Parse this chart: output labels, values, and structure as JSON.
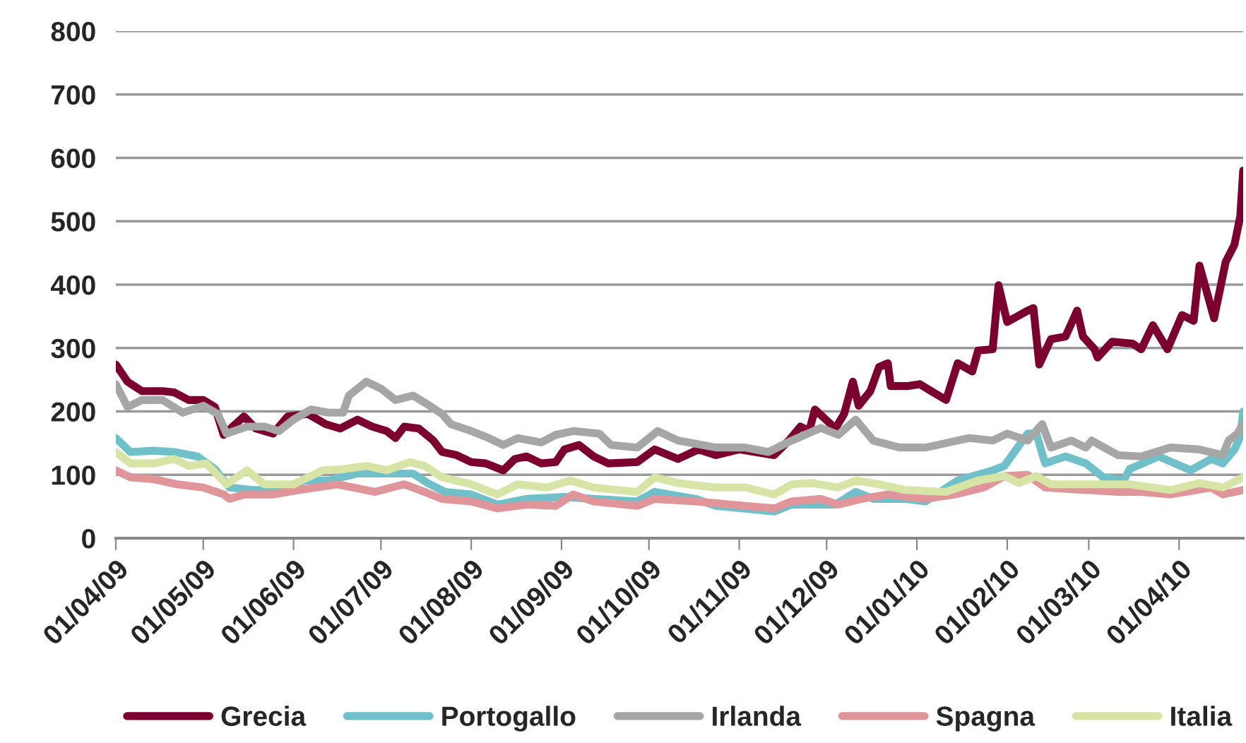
{
  "chart_data": {
    "type": "line",
    "ylim": [
      0,
      800
    ],
    "yticks": [
      0,
      100,
      200,
      300,
      400,
      500,
      600,
      700,
      800
    ],
    "xlim": [
      "2009-04-01",
      "2010-04-23"
    ],
    "xticks": [
      {
        "value": "2009-04-01",
        "label": "01/04/09"
      },
      {
        "value": "2009-05-01",
        "label": "01/05/09"
      },
      {
        "value": "2009-06-01",
        "label": "01/06/09"
      },
      {
        "value": "2009-07-01",
        "label": "01/07/09"
      },
      {
        "value": "2009-08-01",
        "label": "01/08/09"
      },
      {
        "value": "2009-09-01",
        "label": "01/09/09"
      },
      {
        "value": "2009-10-01",
        "label": "01/10/09"
      },
      {
        "value": "2009-11-01",
        "label": "01/11/09"
      },
      {
        "value": "2009-12-01",
        "label": "01/12/09"
      },
      {
        "value": "2010-01-01",
        "label": "01/01/10"
      },
      {
        "value": "2010-02-01",
        "label": "01/02/10"
      },
      {
        "value": "2010-03-01",
        "label": "01/03/10"
      },
      {
        "value": "2010-04-01",
        "label": "01/04/10"
      }
    ],
    "grid": "y",
    "legend": "bottom",
    "marker": "none",
    "line_style": "solid",
    "series": [
      {
        "name": "Grecia",
        "color": "#7b0030",
        "x": [
          "2009-04-01",
          "2009-04-05",
          "2009-04-10",
          "2009-04-17",
          "2009-04-21",
          "2009-04-26",
          "2009-05-01",
          "2009-05-05",
          "2009-05-08",
          "2009-05-15",
          "2009-05-19",
          "2009-05-25",
          "2009-05-30",
          "2009-06-06",
          "2009-06-12",
          "2009-06-17",
          "2009-06-23",
          "2009-06-28",
          "2009-07-03",
          "2009-07-06",
          "2009-07-09",
          "2009-07-14",
          "2009-07-19",
          "2009-07-22",
          "2009-07-27",
          "2009-08-01",
          "2009-08-06",
          "2009-08-12",
          "2009-08-16",
          "2009-08-20",
          "2009-08-25",
          "2009-08-30",
          "2009-09-02",
          "2009-09-07",
          "2009-09-12",
          "2009-09-17",
          "2009-09-27",
          "2009-10-03",
          "2009-10-11",
          "2009-10-18",
          "2009-10-24",
          "2009-11-01",
          "2009-11-09",
          "2009-11-13",
          "2009-11-18",
          "2009-11-22",
          "2009-11-25",
          "2009-11-27",
          "2009-12-04",
          "2009-12-07",
          "2009-12-10",
          "2009-12-12",
          "2009-12-16",
          "2009-12-19",
          "2009-12-22",
          "2009-12-23",
          "2009-12-29",
          "2010-01-02",
          "2010-01-07",
          "2010-01-11",
          "2010-01-15",
          "2010-01-20",
          "2010-01-22",
          "2010-01-27",
          "2010-01-29",
          "2010-02-01",
          "2010-02-08",
          "2010-02-10",
          "2010-02-12",
          "2010-02-16",
          "2010-02-21",
          "2010-02-25",
          "2010-02-27",
          "2010-03-03",
          "2010-03-04",
          "2010-03-09",
          "2010-03-16",
          "2010-03-19",
          "2010-03-23",
          "2010-03-28",
          "2010-04-02",
          "2010-04-06",
          "2010-04-08",
          "2010-04-13",
          "2010-04-17",
          "2010-04-20",
          "2010-04-22",
          "2010-04-23"
        ],
        "values": [
          274,
          247,
          232,
          232,
          230,
          218,
          218,
          207,
          163,
          192,
          173,
          165,
          192,
          196,
          180,
          173,
          187,
          176,
          169,
          158,
          176,
          173,
          154,
          136,
          131,
          120,
          118,
          107,
          125,
          129,
          118,
          120,
          140,
          147,
          129,
          118,
          120,
          140,
          125,
          140,
          131,
          140,
          134,
          131,
          154,
          176,
          169,
          203,
          173,
          196,
          247,
          209,
          232,
          270,
          276,
          240,
          240,
          243,
          229,
          218,
          276,
          263,
          296,
          298,
          399,
          341,
          359,
          363,
          274,
          314,
          318,
          359,
          318,
          298,
          285,
          310,
          307,
          298,
          336,
          298,
          352,
          343,
          430,
          347,
          436,
          463,
          508,
          580
        ]
      },
      {
        "name": "Portogallo",
        "color": "#6fc0c8",
        "x": [
          "2009-04-01",
          "2009-04-06",
          "2009-04-14",
          "2009-04-21",
          "2009-04-29",
          "2009-05-05",
          "2009-05-10",
          "2009-05-18",
          "2009-05-28",
          "2009-06-05",
          "2009-06-13",
          "2009-06-23",
          "2009-07-03",
          "2009-07-12",
          "2009-07-17",
          "2009-07-23",
          "2009-08-01",
          "2009-08-10",
          "2009-08-20",
          "2009-09-02",
          "2009-09-12",
          "2009-09-27",
          "2009-10-03",
          "2009-10-17",
          "2009-10-24",
          "2009-11-13",
          "2009-11-19",
          "2009-12-04",
          "2009-12-11",
          "2009-12-17",
          "2009-12-28",
          "2010-01-04",
          "2010-01-15",
          "2010-01-27",
          "2010-01-31",
          "2010-02-08",
          "2010-02-11",
          "2010-02-14",
          "2010-02-21",
          "2010-02-28",
          "2010-03-06",
          "2010-03-13",
          "2010-03-15",
          "2010-03-25",
          "2010-04-05",
          "2010-04-12",
          "2010-04-16",
          "2010-04-20",
          "2010-04-22",
          "2010-04-23"
        ],
        "values": [
          158,
          136,
          138,
          136,
          129,
          109,
          80,
          76,
          76,
          91,
          91,
          102,
          102,
          102,
          87,
          73,
          69,
          53,
          62,
          65,
          62,
          58,
          73,
          62,
          51,
          42,
          53,
          53,
          73,
          62,
          62,
          58,
          91,
          107,
          114,
          165,
          165,
          118,
          129,
          118,
          96,
          91,
          109,
          129,
          107,
          125,
          118,
          140,
          160,
          200
        ]
      },
      {
        "name": "Irlanda",
        "color": "#a6a6a6",
        "x": [
          "2009-04-01",
          "2009-04-05",
          "2009-04-10",
          "2009-04-17",
          "2009-04-24",
          "2009-05-01",
          "2009-05-06",
          "2009-05-09",
          "2009-05-16",
          "2009-05-22",
          "2009-05-27",
          "2009-06-01",
          "2009-06-07",
          "2009-06-13",
          "2009-06-18",
          "2009-06-20",
          "2009-06-26",
          "2009-07-01",
          "2009-07-06",
          "2009-07-12",
          "2009-07-16",
          "2009-07-22",
          "2009-07-25",
          "2009-08-01",
          "2009-08-07",
          "2009-08-12",
          "2009-08-17",
          "2009-08-25",
          "2009-08-30",
          "2009-09-05",
          "2009-09-14",
          "2009-09-18",
          "2009-09-27",
          "2009-10-04",
          "2009-10-11",
          "2009-10-24",
          "2009-11-03",
          "2009-11-11",
          "2009-11-19",
          "2009-11-29",
          "2009-12-05",
          "2009-12-11",
          "2009-12-17",
          "2009-12-26",
          "2010-01-04",
          "2010-01-08",
          "2010-01-19",
          "2010-01-27",
          "2010-02-01",
          "2010-02-08",
          "2010-02-13",
          "2010-02-16",
          "2010-02-23",
          "2010-02-28",
          "2010-03-02",
          "2010-03-11",
          "2010-03-19",
          "2010-03-29",
          "2010-04-08",
          "2010-04-16",
          "2010-04-18",
          "2010-04-21",
          "2010-04-23"
        ],
        "values": [
          243,
          207,
          218,
          218,
          198,
          209,
          196,
          165,
          176,
          176,
          169,
          187,
          203,
          198,
          198,
          225,
          247,
          236,
          218,
          225,
          214,
          196,
          180,
          169,
          158,
          147,
          158,
          151,
          163,
          169,
          165,
          147,
          143,
          169,
          154,
          143,
          143,
          136,
          154,
          174,
          163,
          187,
          154,
          143,
          143,
          147,
          158,
          154,
          165,
          154,
          180,
          143,
          154,
          143,
          154,
          131,
          129,
          143,
          140,
          131,
          154,
          165,
          180
        ]
      },
      {
        "name": "Spagna",
        "color": "#e0959a",
        "x": [
          "2009-04-01",
          "2009-04-06",
          "2009-04-14",
          "2009-04-22",
          "2009-05-01",
          "2009-05-08",
          "2009-05-10",
          "2009-05-15",
          "2009-05-25",
          "2009-06-03",
          "2009-06-16",
          "2009-06-29",
          "2009-07-09",
          "2009-07-16",
          "2009-07-22",
          "2009-08-01",
          "2009-08-10",
          "2009-08-20",
          "2009-08-30",
          "2009-09-05",
          "2009-09-12",
          "2009-09-27",
          "2009-10-03",
          "2009-10-17",
          "2009-11-03",
          "2009-11-13",
          "2009-11-19",
          "2009-11-29",
          "2009-12-05",
          "2009-12-13",
          "2009-12-22",
          "2010-01-04",
          "2010-01-14",
          "2010-01-24",
          "2010-01-31",
          "2010-02-08",
          "2010-02-14",
          "2010-02-28",
          "2010-03-11",
          "2010-03-19",
          "2010-03-29",
          "2010-04-12",
          "2010-04-16",
          "2010-04-23"
        ],
        "values": [
          107,
          96,
          93,
          85,
          80,
          69,
          62,
          69,
          69,
          76,
          85,
          73,
          85,
          73,
          62,
          58,
          47,
          53,
          51,
          69,
          58,
          51,
          62,
          58,
          51,
          47,
          58,
          62,
          53,
          62,
          69,
          62,
          69,
          80,
          98,
          100,
          80,
          76,
          73,
          73,
          69,
          80,
          69,
          76
        ]
      },
      {
        "name": "Italia",
        "color": "#d6e4a6",
        "x": [
          "2009-04-01",
          "2009-04-06",
          "2009-04-14",
          "2009-04-21",
          "2009-04-26",
          "2009-05-02",
          "2009-05-09",
          "2009-05-16",
          "2009-05-22",
          "2009-06-01",
          "2009-06-11",
          "2009-06-18",
          "2009-06-26",
          "2009-07-03",
          "2009-07-11",
          "2009-07-16",
          "2009-07-22",
          "2009-08-01",
          "2009-08-10",
          "2009-08-17",
          "2009-08-27",
          "2009-09-04",
          "2009-09-12",
          "2009-09-27",
          "2009-10-03",
          "2009-10-11",
          "2009-10-24",
          "2009-11-03",
          "2009-11-13",
          "2009-11-19",
          "2009-11-26",
          "2009-12-05",
          "2009-12-11",
          "2009-12-19",
          "2009-12-28",
          "2010-01-11",
          "2010-01-22",
          "2010-01-31",
          "2010-02-05",
          "2010-02-11",
          "2010-02-16",
          "2010-02-28",
          "2010-03-07",
          "2010-03-15",
          "2010-03-29",
          "2010-04-08",
          "2010-04-16",
          "2010-04-23"
        ],
        "values": [
          136,
          118,
          118,
          125,
          114,
          118,
          85,
          107,
          85,
          85,
          107,
          109,
          114,
          107,
          120,
          114,
          96,
          85,
          69,
          85,
          80,
          91,
          80,
          73,
          96,
          87,
          80,
          80,
          69,
          85,
          87,
          80,
          91,
          85,
          76,
          73,
          91,
          98,
          87,
          98,
          85,
          85,
          85,
          85,
          76,
          87,
          80,
          96
        ]
      }
    ]
  }
}
